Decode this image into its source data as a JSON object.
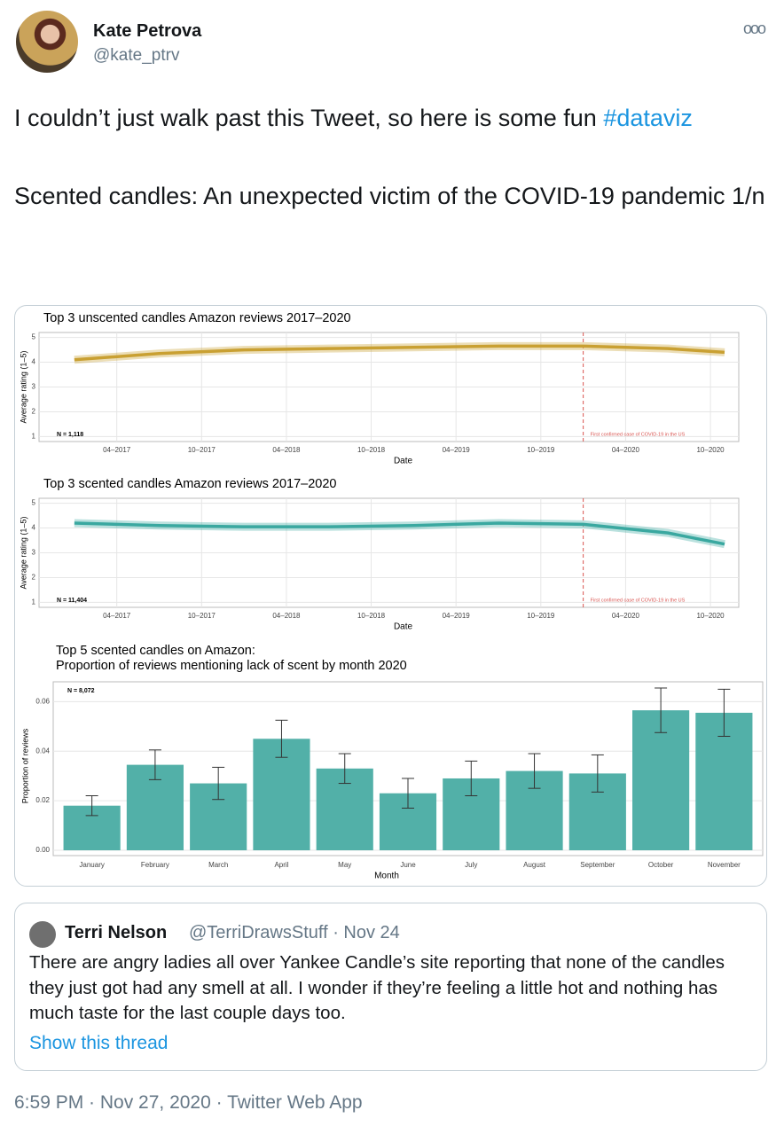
{
  "author": {
    "name": "Kate Petrova",
    "handle": "@kate_ptrv"
  },
  "tweet": {
    "line1": "I couldn’t just walk past this Tweet, so here is some fun",
    "hashtag": "#dataviz",
    "line2": "Scented candles: An unexpected victim of the COVID-19 pandemic 1/n"
  },
  "chart_data": [
    {
      "type": "line",
      "title": "Top 3 unscented candles Amazon reviews 2017–2020",
      "x_label": "Date",
      "y_label": "Average rating (1–5)",
      "x": [
        "2017-01",
        "2017-07",
        "2018-01",
        "2018-07",
        "2019-01",
        "2019-07",
        "2020-01",
        "2020-07",
        "2020-11"
      ],
      "values": [
        4.1,
        4.35,
        4.5,
        4.55,
        4.6,
        4.65,
        4.65,
        4.55,
        4.4
      ],
      "color": "#c9a032",
      "xlim": [
        "2016-11",
        "2020-11"
      ],
      "xticks": [
        {
          "value": "2017-04",
          "label": "04–2017"
        },
        {
          "value": "2017-10",
          "label": "10–2017"
        },
        {
          "value": "2018-04",
          "label": "04–2018"
        },
        {
          "value": "2018-10",
          "label": "10–2018"
        },
        {
          "value": "2019-04",
          "label": "04–2019"
        },
        {
          "value": "2019-10",
          "label": "10–2019"
        },
        {
          "value": "2020-04",
          "label": "04–2020"
        },
        {
          "value": "2020-10",
          "label": "10–2020"
        }
      ],
      "ylim": [
        0.8,
        5.2
      ],
      "yticks": [
        1,
        2,
        3,
        4,
        5
      ],
      "grid": true,
      "n_label": "N = 1,118",
      "marker_x": "2020-01",
      "marker_label": "First confirmed case of COVID-19 in the US"
    },
    {
      "type": "line",
      "title": "Top 3 scented candles Amazon reviews 2017–2020",
      "x_label": "Date",
      "y_label": "Average rating (1–5)",
      "x": [
        "2017-01",
        "2017-07",
        "2018-01",
        "2018-07",
        "2019-01",
        "2019-07",
        "2020-01",
        "2020-07",
        "2020-11"
      ],
      "values": [
        4.2,
        4.1,
        4.05,
        4.05,
        4.1,
        4.2,
        4.15,
        3.8,
        3.35
      ],
      "color": "#3aa8a0",
      "xlim": [
        "2016-11",
        "2020-11"
      ],
      "xticks": [
        {
          "value": "2017-04",
          "label": "04–2017"
        },
        {
          "value": "2017-10",
          "label": "10–2017"
        },
        {
          "value": "2018-04",
          "label": "04–2018"
        },
        {
          "value": "2018-10",
          "label": "10–2018"
        },
        {
          "value": "2019-04",
          "label": "04–2019"
        },
        {
          "value": "2019-10",
          "label": "10–2019"
        },
        {
          "value": "2020-04",
          "label": "04–2020"
        },
        {
          "value": "2020-10",
          "label": "10–2020"
        }
      ],
      "ylim": [
        0.8,
        5.2
      ],
      "yticks": [
        1,
        2,
        3,
        4,
        5
      ],
      "grid": true,
      "n_label": "N = 11,404",
      "marker_x": "2020-01",
      "marker_label": "First confirmed case of COVID-19 in the US"
    },
    {
      "type": "bar",
      "title": "Top 5 scented candles on Amazon:",
      "subtitle": "Proportion of reviews mentioning lack of scent by month 2020",
      "x_label": "Month",
      "y_label": "Proportion of reviews",
      "categories": [
        "January",
        "February",
        "March",
        "April",
        "May",
        "June",
        "July",
        "August",
        "September",
        "October",
        "November"
      ],
      "values": [
        0.018,
        0.0345,
        0.027,
        0.045,
        0.033,
        0.023,
        0.029,
        0.032,
        0.031,
        0.0565,
        0.0555
      ],
      "errors": [
        0.004,
        0.006,
        0.0065,
        0.0075,
        0.006,
        0.006,
        0.007,
        0.007,
        0.0075,
        0.009,
        0.0095
      ],
      "color": "#52b0a8",
      "ylim": [
        0,
        0.068
      ],
      "yticks": [
        {
          "value": 0,
          "label": "0.00"
        },
        {
          "value": 0.02,
          "label": "0.02"
        },
        {
          "value": 0.04,
          "label": "0.04"
        },
        {
          "value": 0.06,
          "label": "0.06"
        }
      ],
      "grid": true,
      "n_label": "N = 8,072"
    }
  ],
  "quote": {
    "name": "Terri Nelson",
    "handle_date": "@TerriDrawsStuff · Nov 24",
    "text": "There are angry ladies all over Yankee Candle’s site reporting that none of the candles they just got had any smell at all.  I wonder if they’re feeling a little hot and nothing has much taste for the last couple days too.",
    "link": "Show this thread"
  },
  "footer": "6:59 PM · Nov 27, 2020 · Twitter Web App"
}
